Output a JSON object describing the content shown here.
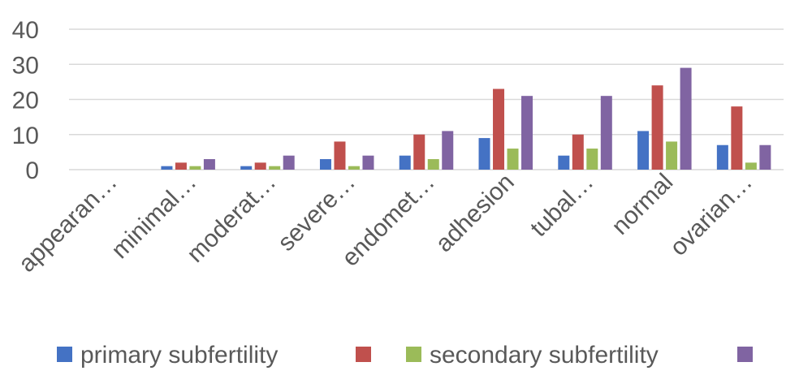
{
  "chart_data": {
    "type": "bar",
    "categories": [
      "appearan…",
      "minimal…",
      "moderat…",
      "severe…",
      "endomet…",
      "adhesion",
      "tubal…",
      "normal",
      "ovarian…"
    ],
    "series": [
      {
        "name": "primary subfertility",
        "color": "#4472c4",
        "values": [
          0,
          1,
          1,
          3,
          4,
          9,
          4,
          11,
          7
        ]
      },
      {
        "name": "",
        "color": "#c0504d",
        "values": [
          0,
          2,
          2,
          8,
          10,
          23,
          10,
          24,
          18
        ]
      },
      {
        "name": "secondary subfertility",
        "color": "#9bbb59",
        "values": [
          0,
          1,
          1,
          1,
          3,
          6,
          6,
          8,
          2
        ]
      },
      {
        "name": "",
        "color": "#8064a2",
        "values": [
          0,
          3,
          4,
          4,
          11,
          21,
          21,
          29,
          7
        ]
      }
    ],
    "yticks": [
      "0",
      "10",
      "20",
      "30",
      "40"
    ],
    "ylim": [
      0,
      40
    ],
    "grid": true,
    "legend": "bottom"
  }
}
